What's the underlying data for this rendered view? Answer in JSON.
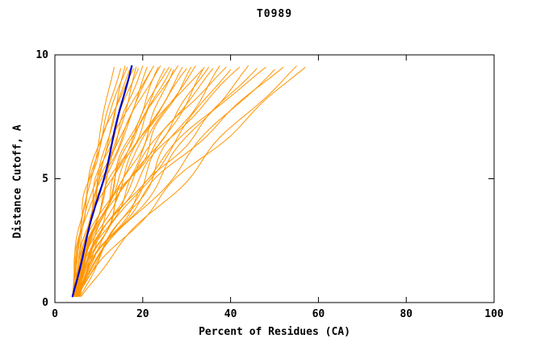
{
  "page": {
    "background": "#ffffff"
  },
  "chart_data": {
    "type": "line",
    "title": "T0989",
    "xlabel": "Percent of Residues (CA)",
    "ylabel": "Distance Cutoff, A",
    "xlim": [
      0,
      100
    ],
    "ylim": [
      0,
      10
    ],
    "xticks": [
      0,
      20,
      40,
      60,
      80,
      100
    ],
    "yticks": [
      0,
      5,
      10
    ],
    "grid": false,
    "legend": "none",
    "colors": {
      "model_curves": "#ff9500",
      "highlight_curve": "#0000cc",
      "axis": "#000000",
      "text": "#000000"
    },
    "y_start": 0.25,
    "params_format": [
      "x_bottom",
      "x_top",
      "shape",
      "wiggle_amp",
      "wiggle_freq",
      "wiggle_phase",
      "y_top"
    ],
    "series_note": "Cumulative percent of CA residues under distance cutoff; ~38 orange model curves fanning from x=4-6 at bottom to x=13-57 at top, one blue highlighted curve reaching ~17.5 at top",
    "model_curves": [
      [
        4.0,
        13.5,
        1.25,
        0.35,
        2.0,
        0.3,
        9.5
      ],
      [
        4.2,
        15.0,
        1.5,
        0.4,
        3.1,
        1.2,
        9.45
      ],
      [
        4.5,
        16.0,
        1.1,
        0.5,
        2.5,
        2.0,
        9.55
      ],
      [
        4.3,
        17.0,
        1.4,
        0.6,
        1.8,
        0.8,
        9.4
      ],
      [
        4.8,
        18.5,
        1.0,
        0.5,
        2.2,
        2.6,
        9.5
      ],
      [
        5.0,
        19.0,
        1.6,
        0.7,
        2.9,
        1.5,
        9.45
      ],
      [
        4.1,
        20.0,
        1.3,
        0.6,
        3.4,
        0.2,
        9.55
      ],
      [
        4.6,
        21.0,
        1.2,
        0.8,
        2.1,
        2.9,
        9.5
      ],
      [
        5.2,
        22.0,
        1.5,
        0.7,
        1.6,
        1.0,
        9.4
      ],
      [
        4.4,
        23.5,
        1.1,
        0.9,
        2.7,
        0.6,
        9.5
      ],
      [
        4.9,
        24.0,
        1.7,
        0.6,
        3.0,
        2.2,
        9.55
      ],
      [
        5.5,
        25.0,
        1.3,
        0.8,
        2.4,
        1.8,
        9.45
      ],
      [
        4.2,
        26.0,
        1.4,
        1.0,
        1.9,
        0.4,
        9.5
      ],
      [
        4.7,
        27.0,
        1.0,
        0.9,
        2.8,
        2.4,
        9.4
      ],
      [
        5.1,
        28.0,
        1.6,
        0.7,
        3.2,
        1.1,
        9.55
      ],
      [
        4.3,
        29.0,
        1.2,
        1.1,
        2.0,
        2.8,
        9.5
      ],
      [
        5.3,
        30.0,
        1.5,
        0.8,
        2.6,
        0.9,
        9.45
      ],
      [
        4.5,
        31.0,
        1.1,
        1.0,
        3.3,
        1.7,
        9.5
      ],
      [
        4.8,
        32.0,
        1.3,
        0.9,
        2.3,
        0.1,
        9.55
      ],
      [
        5.0,
        33.5,
        1.7,
        1.2,
        1.7,
        2.5,
        9.4
      ],
      [
        4.4,
        35.0,
        1.2,
        1.0,
        2.9,
        1.3,
        9.5
      ],
      [
        5.4,
        36.0,
        1.4,
        1.1,
        2.2,
        2.0,
        9.45
      ],
      [
        4.6,
        37.5,
        1.0,
        1.3,
        2.5,
        0.7,
        9.55
      ],
      [
        5.2,
        39.0,
        1.6,
        1.0,
        3.1,
        2.7,
        9.5
      ],
      [
        4.9,
        40.0,
        1.2,
        1.2,
        1.8,
        1.4,
        9.4
      ],
      [
        5.6,
        42.0,
        1.5,
        1.1,
        2.7,
        0.5,
        9.5
      ],
      [
        4.7,
        44.0,
        1.1,
        1.4,
        2.1,
        2.3,
        9.55
      ],
      [
        5.1,
        46.0,
        1.3,
        1.2,
        3.0,
        1.6,
        9.45
      ],
      [
        5.8,
        48.0,
        1.6,
        1.0,
        2.4,
        0.3,
        9.5
      ],
      [
        5.0,
        50.0,
        1.2,
        1.5,
        1.9,
        2.1,
        9.4
      ],
      [
        5.5,
        52.0,
        1.4,
        1.1,
        2.8,
        1.9,
        9.5
      ],
      [
        6.0,
        55.0,
        1.1,
        1.3,
        2.3,
        0.8,
        9.55
      ],
      [
        5.3,
        57.0,
        1.2,
        1.2,
        2.6,
        2.6,
        9.5
      ],
      [
        4.3,
        18.0,
        2.0,
        0.5,
        3.5,
        1.2,
        9.45
      ],
      [
        4.1,
        16.5,
        1.8,
        0.4,
        2.9,
        0.6,
        9.5
      ],
      [
        4.6,
        22.5,
        1.9,
        0.6,
        2.0,
        2.2,
        9.55
      ],
      [
        5.7,
        34.0,
        1.0,
        1.0,
        2.5,
        1.0,
        9.5
      ],
      [
        4.8,
        26.5,
        1.3,
        0.9,
        3.2,
        0.2,
        9.45
      ]
    ],
    "highlight_curve": [
      4.0,
      17.5,
      1.0,
      0.3,
      2.0,
      1.0,
      9.55
    ]
  }
}
